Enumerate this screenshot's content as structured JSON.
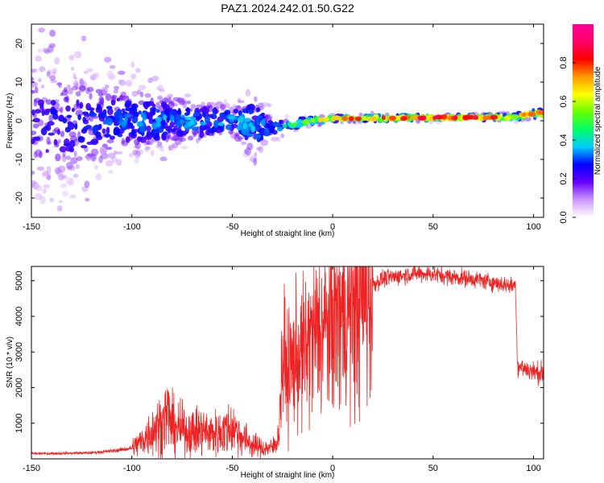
{
  "figure_title": "PAZ1.2024.242.01.50.G22",
  "chart_data": [
    {
      "type": "heatmap",
      "xlabel": "Height of straight line (km)",
      "ylabel": "Frequency (Hz)",
      "xlim": [
        -150,
        105
      ],
      "ylim": [
        -25,
        25
      ],
      "xticks": [
        -150,
        -100,
        -50,
        0,
        50,
        100
      ],
      "yticks": [
        -20,
        -10,
        0,
        10,
        20
      ],
      "colorbar": {
        "label": "Normalized spectral amplitude",
        "range": [
          0,
          1
        ],
        "ticks": [
          "0.0",
          "0.2",
          "0.4",
          "0.6",
          "0.8"
        ],
        "colors": [
          "#ffffff",
          "#cc99ff",
          "#6600ff",
          "#0000ff",
          "#00ccff",
          "#00ff66",
          "#66ff00",
          "#ffff00",
          "#ff9900",
          "#ff0000",
          "#ff0066",
          "#ff0099"
        ]
      },
      "center_line": {
        "x": [
          -150,
          -100,
          -50,
          -40,
          -30,
          -20,
          -10,
          0,
          25,
          50,
          75,
          90,
          100,
          105
        ],
        "y": [
          -1,
          0,
          0,
          -1,
          -2,
          -1,
          0,
          0.5,
          0.7,
          0.8,
          0.9,
          1.0,
          1.8,
          2.0
        ]
      },
      "max_amplitude": {
        "x": [
          -150,
          -100,
          -50,
          -40,
          -30,
          -20,
          -10,
          0,
          25,
          50,
          75,
          90,
          100,
          105
        ],
        "value": [
          0.25,
          0.35,
          0.4,
          0.4,
          0.35,
          0.5,
          0.65,
          0.8,
          0.95,
          0.95,
          0.9,
          0.7,
          0.85,
          0.8
        ]
      },
      "spread_hz": {
        "x": [
          -150,
          -100,
          -50,
          -40,
          -30,
          -20,
          -10,
          0,
          25,
          50,
          75,
          90,
          100,
          105
        ],
        "value": [
          25,
          12,
          5,
          12,
          3,
          2,
          1.5,
          1,
          1,
          1,
          1,
          1.2,
          1.5,
          1.5
        ]
      }
    },
    {
      "type": "line",
      "xlabel": "Height of straight line (km)",
      "ylabel": "SNR (10 * v/v)",
      "xlim": [
        -150,
        105
      ],
      "ylim": [
        0,
        5400
      ],
      "xticks": [
        -150,
        -100,
        -50,
        0,
        50,
        100
      ],
      "yticks": [
        1000,
        2000,
        3000,
        4000,
        5000
      ],
      "color": "#ee2222",
      "series": [
        {
          "x": [
            -150,
            -140,
            -130,
            -120,
            -110,
            -100,
            -95,
            -90,
            -85,
            -82,
            -80,
            -75,
            -70,
            -65,
            -60,
            -55,
            -50,
            -45,
            -40,
            -35,
            -30,
            -27,
            -25,
            -22,
            -20,
            -15,
            -10,
            -5,
            0,
            5,
            10,
            15,
            20,
            25,
            30,
            35,
            40,
            45,
            50,
            55,
            60,
            65,
            70,
            75,
            80,
            85,
            90,
            91,
            92,
            95,
            100,
            105
          ],
          "values": [
            150,
            150,
            160,
            170,
            220,
            300,
            500,
            800,
            1000,
            1300,
            900,
            800,
            750,
            800,
            700,
            750,
            900,
            600,
            400,
            300,
            300,
            600,
            2800,
            2400,
            2700,
            2900,
            3400,
            3600,
            3900,
            4100,
            4300,
            4600,
            4900,
            5050,
            5100,
            5150,
            5200,
            5200,
            5180,
            5150,
            5100,
            5080,
            5050,
            5000,
            4950,
            4900,
            4850,
            4900,
            2600,
            2550,
            2450,
            2400
          ]
        }
      ]
    }
  ]
}
